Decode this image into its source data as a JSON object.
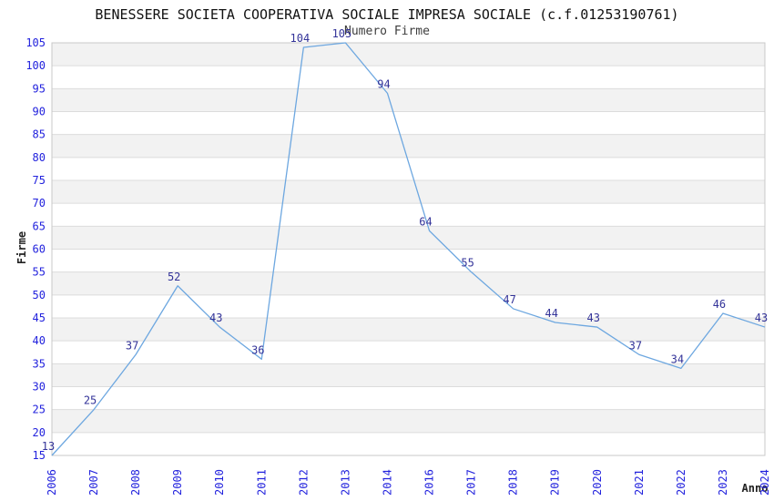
{
  "chart_data": {
    "type": "line",
    "title": "BENESSERE SOCIETA COOPERATIVA SOCIALE IMPRESA SOCIALE (c.f.01253190761)",
    "subtitle": "Numero Firme",
    "xlabel": "Anno",
    "ylabel": "Firme",
    "categories": [
      "2006",
      "2007",
      "2008",
      "2009",
      "2010",
      "2011",
      "2012",
      "2013",
      "2014",
      "2016",
      "2017",
      "2018",
      "2019",
      "2020",
      "2021",
      "2022",
      "2023",
      "2024"
    ],
    "values": [
      13,
      25,
      37,
      52,
      43,
      36,
      104,
      105,
      94,
      64,
      55,
      47,
      44,
      43,
      37,
      34,
      46,
      43
    ],
    "point_labels_visible": true,
    "ylim": [
      15,
      105
    ],
    "y_tick_step": 5,
    "y_ticks": [
      105,
      100,
      95,
      90,
      85,
      80,
      75,
      70,
      65,
      60,
      55,
      50,
      45,
      40,
      35,
      30,
      25,
      20,
      15
    ],
    "grid": "horizontal gridlines with alternating shaded bands",
    "legend": "none",
    "colors": {
      "line": "#6da7e0",
      "tick_labels": "#2222dd",
      "data_labels": "#333399",
      "band": "#f2f2f2",
      "gridline": "#dcdcdc",
      "border": "#c8c8c8",
      "title": "#111111",
      "subtitle": "#3d3d3d",
      "axis_titles": "#222222",
      "background": "#ffffff"
    }
  }
}
